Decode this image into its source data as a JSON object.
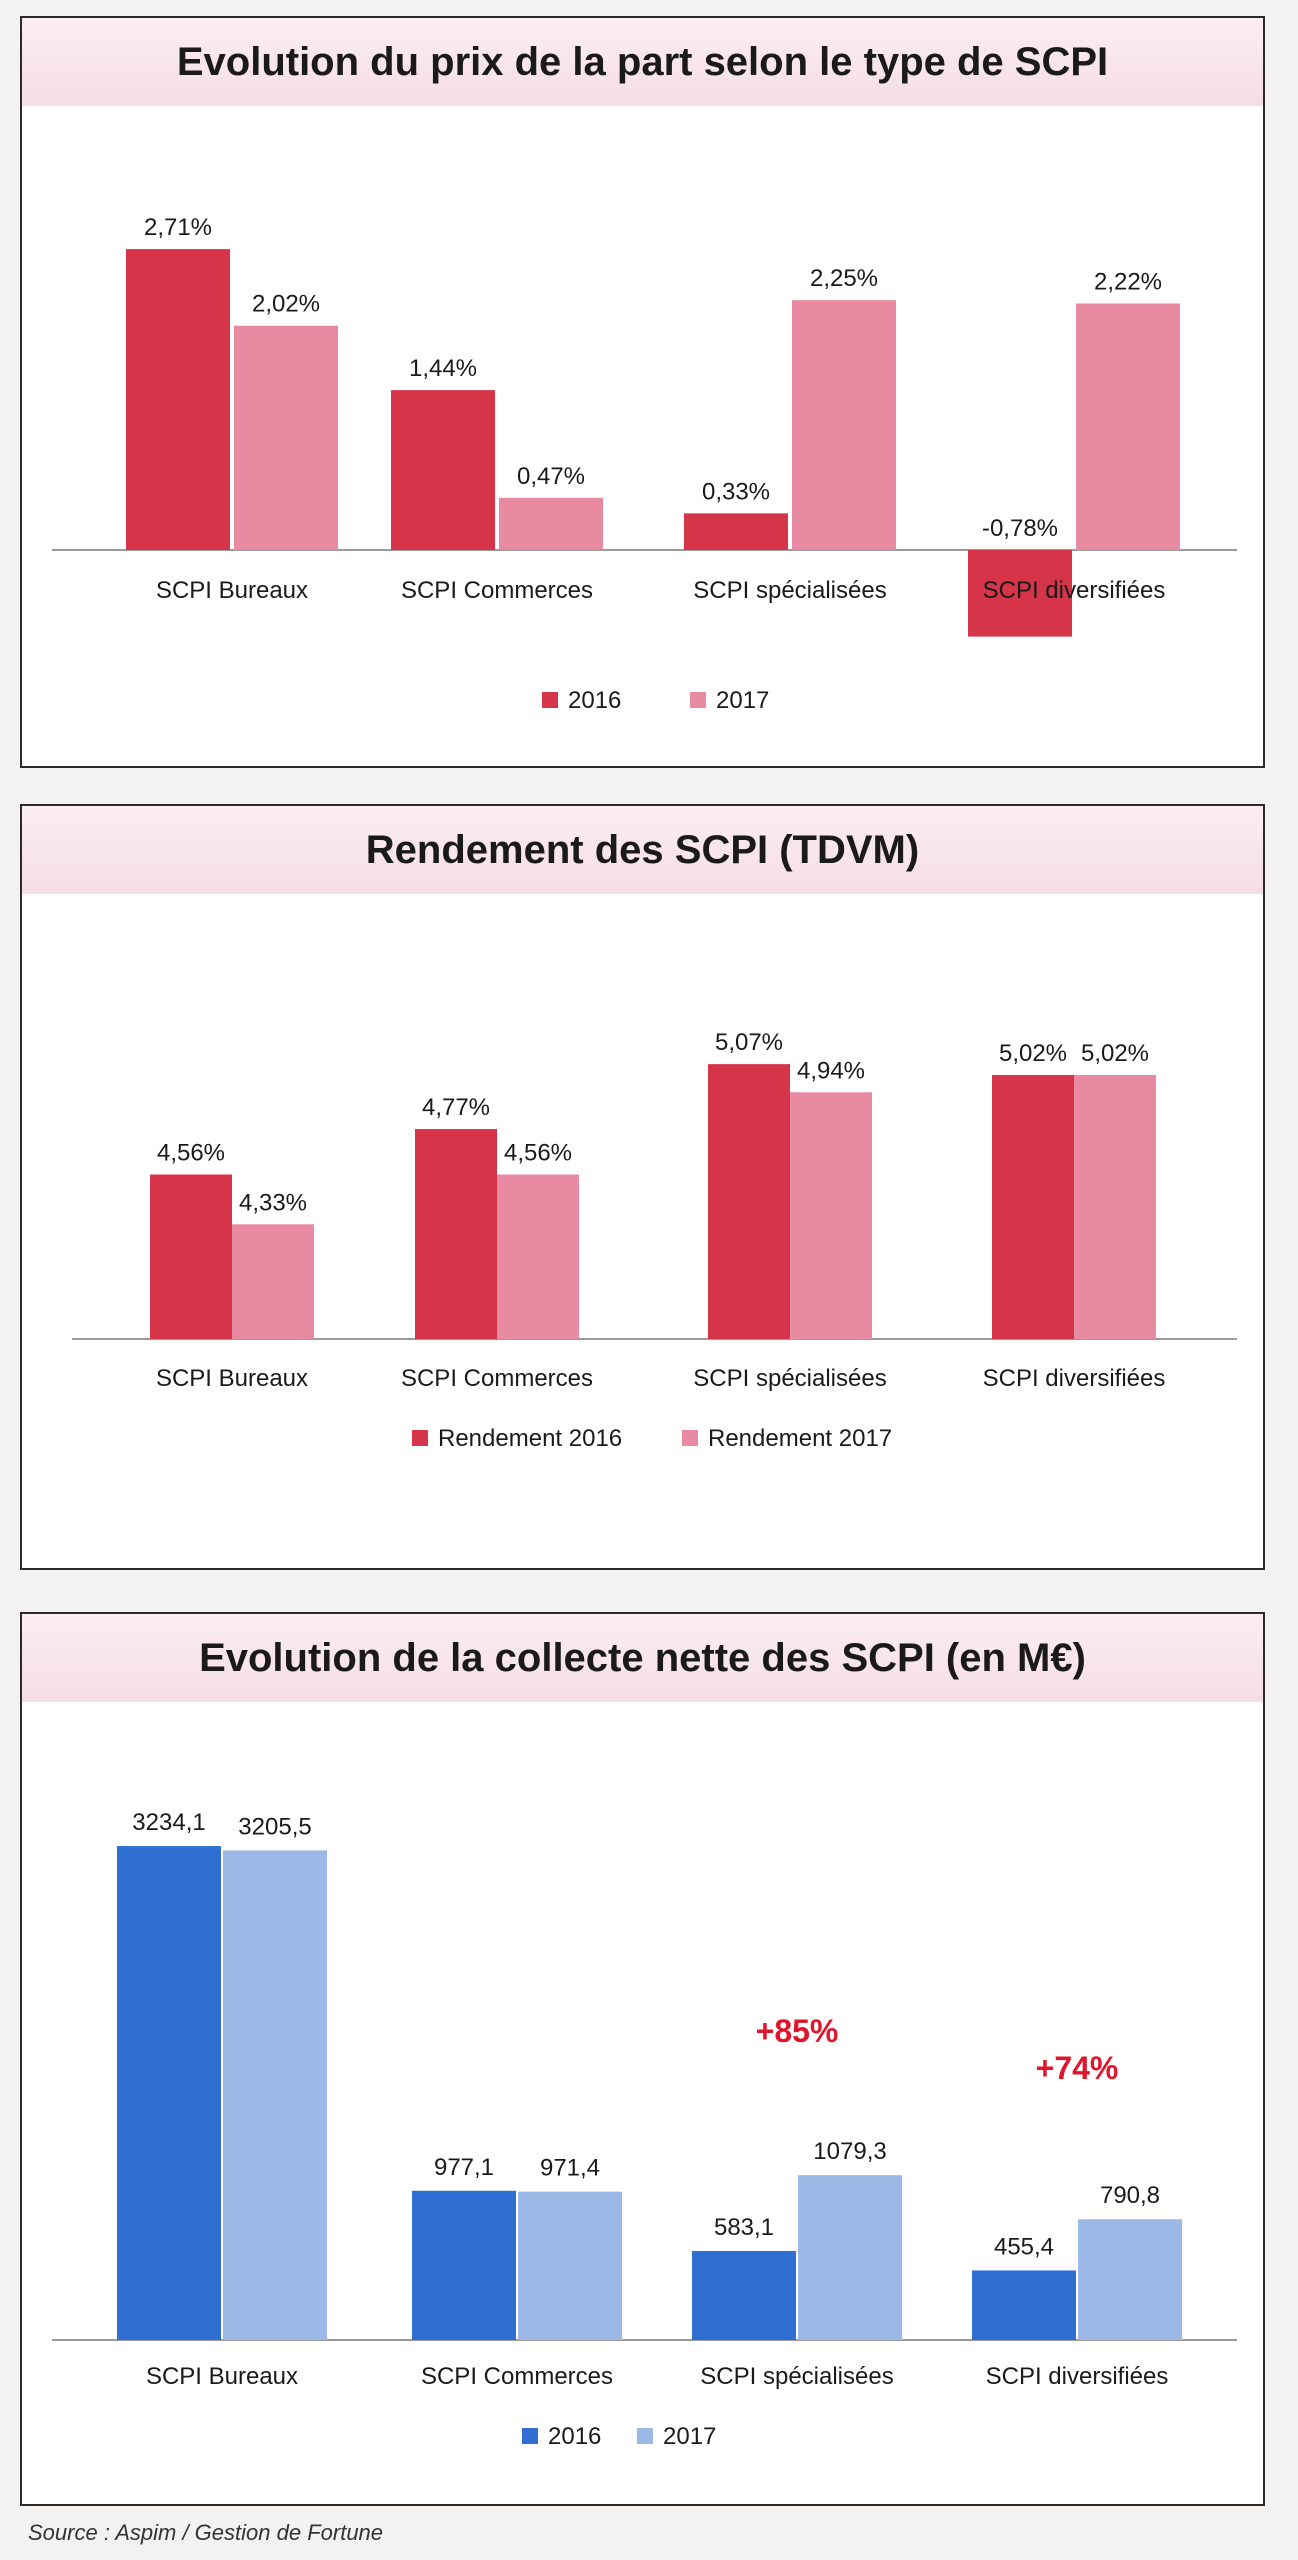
{
  "chart_data": [
    {
      "type": "bar",
      "title": "Evolution du prix de la part selon le type de SCPI",
      "categories": [
        "SCPI Bureaux",
        "SCPI Commerces",
        "SCPI spécialisées",
        "SCPI diversifiées"
      ],
      "series": [
        {
          "name": "2016",
          "values": [
            2.71,
            1.44,
            0.33,
            -0.78
          ],
          "labels": [
            "2,71%",
            "1,44%",
            "0,33%",
            "-0,78%"
          ],
          "color": "#d63448"
        },
        {
          "name": "2017",
          "values": [
            2.02,
            0.47,
            2.25,
            2.22
          ],
          "labels": [
            "2,02%",
            "0,47%",
            "2,25%",
            "2,22%"
          ],
          "color": "#e98aa3"
        }
      ],
      "ylim": [
        -0.95,
        2.9
      ],
      "legend": "bottom-center"
    },
    {
      "type": "bar",
      "title": "Rendement des SCPI (TDVM)",
      "categories": [
        "SCPI Bureaux",
        "SCPI Commerces",
        "SCPI spécialisées",
        "SCPI diversifiées"
      ],
      "series": [
        {
          "name": "Rendement 2016",
          "values": [
            4.56,
            4.77,
            5.07,
            5.02
          ],
          "labels": [
            "4,56%",
            "4,77%",
            "5,07%",
            "5,02%"
          ],
          "color": "#d63448"
        },
        {
          "name": "Rendement 2017",
          "values": [
            4.33,
            4.56,
            4.94,
            5.02
          ],
          "labels": [
            "4,33%",
            "4,56%",
            "4,94%",
            "5,02%"
          ],
          "color": "#e98aa3"
        }
      ],
      "ylim": [
        3.8,
        5.2
      ],
      "legend": "bottom-center"
    },
    {
      "type": "bar",
      "title": "Evolution de la collecte nette des SCPI (en M€)",
      "categories": [
        "SCPI Bureaux",
        "SCPI Commerces",
        "SCPI spécialisées",
        "SCPI diversifiées"
      ],
      "series": [
        {
          "name": "2016",
          "values": [
            3234.1,
            977.1,
            583.1,
            455.4
          ],
          "labels": [
            "3234,1",
            "977,1",
            "583,1",
            "455,4"
          ],
          "color": "#2f6fd3"
        },
        {
          "name": "2017",
          "values": [
            3205.5,
            971.4,
            1079.3,
            790.8
          ],
          "labels": [
            "3205,5",
            "971,4",
            "1079,3",
            "790,8"
          ],
          "color": "#9bb8e6"
        }
      ],
      "annotations": [
        {
          "category": "SCPI spécialisées",
          "text": "+85%"
        },
        {
          "category": "SCPI diversifiées",
          "text": "+74%"
        }
      ],
      "annotation_color": "#e0152b",
      "ylim": [
        0,
        3300
      ],
      "legend": "bottom-center"
    }
  ],
  "source": "Source : Aspim / Gestion de Fortune"
}
